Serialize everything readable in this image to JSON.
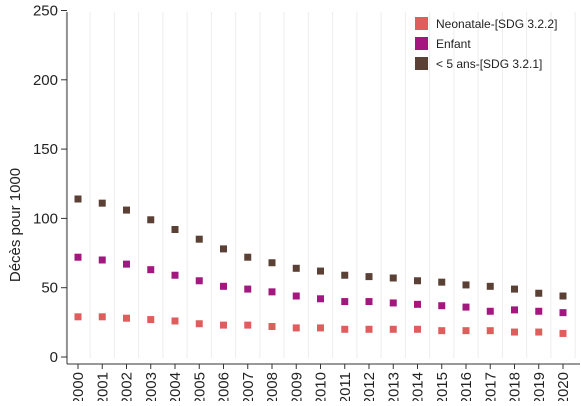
{
  "chart_data": {
    "type": "scatter",
    "ylabel": "Décès pour 1000",
    "ylim": [
      0,
      250
    ],
    "yticks": [
      0,
      50,
      100,
      150,
      200,
      250
    ],
    "categories": [
      "2000",
      "2001",
      "2002",
      "2003",
      "2004",
      "2005",
      "2006",
      "2007",
      "2008",
      "2009",
      "2010",
      "2011",
      "2012",
      "2013",
      "2014",
      "2015",
      "2016",
      "2017",
      "2018",
      "2019",
      "2020"
    ],
    "legend_position": "top-right",
    "grid": "vertical",
    "series": [
      {
        "name": "Neonatale-[SDG 3.2.2]",
        "color": "#e05d5d",
        "values": [
          29,
          29,
          28,
          27,
          26,
          24,
          23,
          23,
          22,
          21,
          21,
          20,
          20,
          20,
          20,
          19,
          19,
          19,
          18,
          18,
          17
        ]
      },
      {
        "name": "Enfant",
        "color": "#a3177f",
        "values": [
          72,
          70,
          67,
          63,
          59,
          55,
          51,
          49,
          47,
          44,
          42,
          40,
          40,
          39,
          38,
          37,
          36,
          33,
          34,
          33,
          32
        ]
      },
      {
        "name": "< 5 ans-[SDG 3.2.1]",
        "color": "#5a4035",
        "values": [
          114,
          111,
          106,
          99,
          92,
          85,
          78,
          72,
          68,
          64,
          62,
          59,
          58,
          57,
          55,
          54,
          52,
          51,
          49,
          46,
          44
        ]
      }
    ]
  }
}
